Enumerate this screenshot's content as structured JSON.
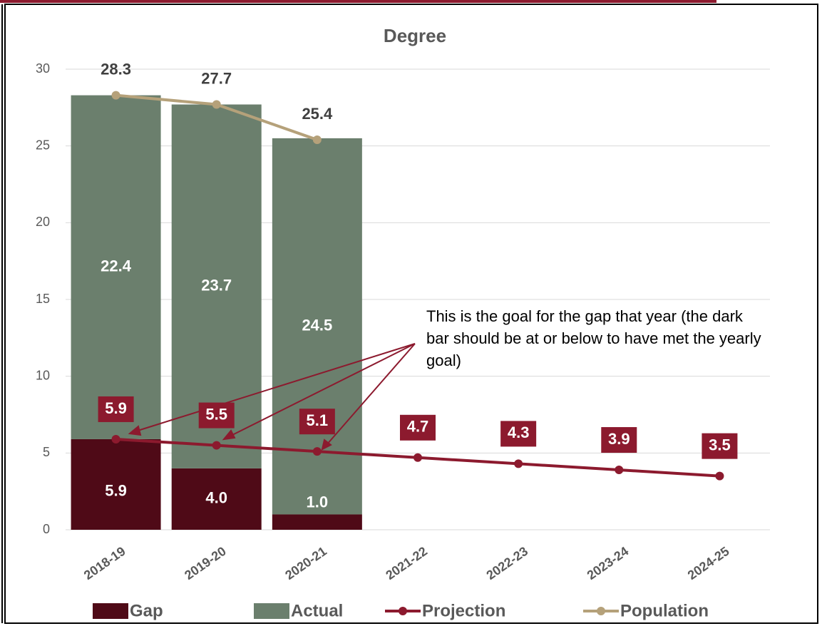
{
  "chart_data": {
    "type": "bar",
    "title": "Degree",
    "categories": [
      "2018-19",
      "2019-20",
      "2020-21",
      "2021-22",
      "2022-23",
      "2023-24",
      "2024-25"
    ],
    "series": [
      {
        "name": "Gap",
        "type": "bar",
        "color": "#4f0a17",
        "values": [
          5.9,
          4.0,
          1.0,
          null,
          null,
          null,
          null
        ],
        "value_labels": [
          "5.9",
          "4.0",
          "1.0",
          null,
          null,
          null,
          null
        ]
      },
      {
        "name": "Actual",
        "type": "bar",
        "color": "#6b7f6d",
        "values": [
          22.4,
          23.7,
          24.5,
          null,
          null,
          null,
          null
        ]
      },
      {
        "name": "Projection",
        "type": "line",
        "color": "#8c1a2e",
        "values": [
          5.9,
          5.5,
          5.1,
          4.7,
          4.3,
          3.9,
          3.5
        ]
      },
      {
        "name": "Population",
        "type": "line",
        "color": "#b5a17a",
        "values": [
          28.3,
          27.7,
          25.4,
          null,
          null,
          null,
          null
        ]
      }
    ],
    "ylim": [
      0,
      30
    ],
    "yticks": [
      0,
      5,
      10,
      15,
      20,
      25,
      30
    ],
    "grid": true,
    "annotation": "This is the goal for the gap that year (the dark bar should be at or below to have met the yearly goal)"
  }
}
